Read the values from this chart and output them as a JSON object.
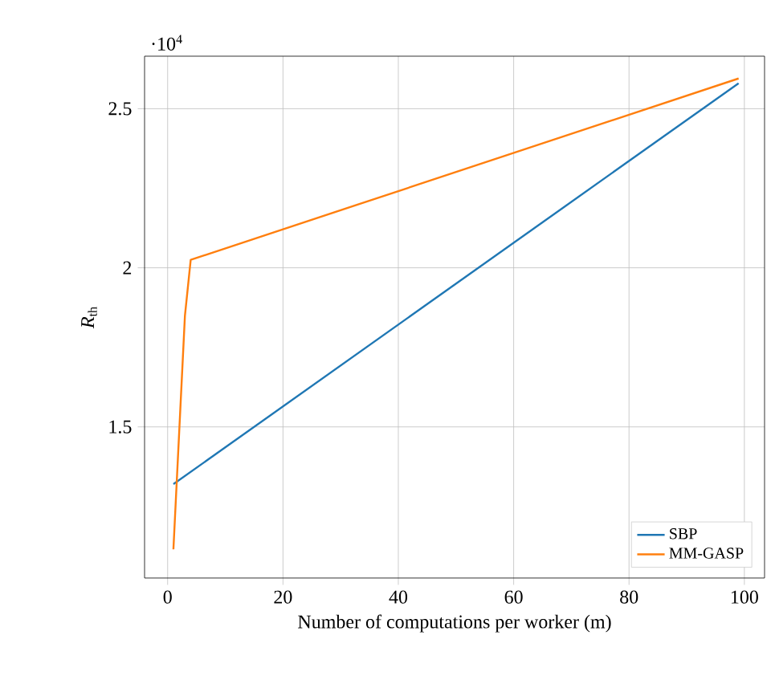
{
  "chart_data": {
    "type": "line",
    "xlabel": "Number of computations per worker (m)",
    "ylabel": "*R*$_{th}$",
    "annotations": [
      "·10$^{4}$"
    ],
    "xlim": [
      -4,
      103.5
    ],
    "ylim": [
      1.025,
      2.665
    ],
    "xticks": [
      0,
      20,
      40,
      60,
      80,
      100
    ],
    "yticks": [
      1.5,
      2,
      2.5
    ],
    "grid": true,
    "legend": "bottom right",
    "series": [
      {
        "name": "SBP",
        "color": "#1f77b4",
        "x": [
          1,
          99
        ],
        "values": [
          1.32,
          2.58
        ]
      },
      {
        "name": "MM-GASP",
        "color": "#ff7f0e",
        "x": [
          1,
          3,
          4,
          99
        ],
        "values": [
          1.115,
          1.85,
          2.025,
          2.595
        ]
      }
    ]
  }
}
